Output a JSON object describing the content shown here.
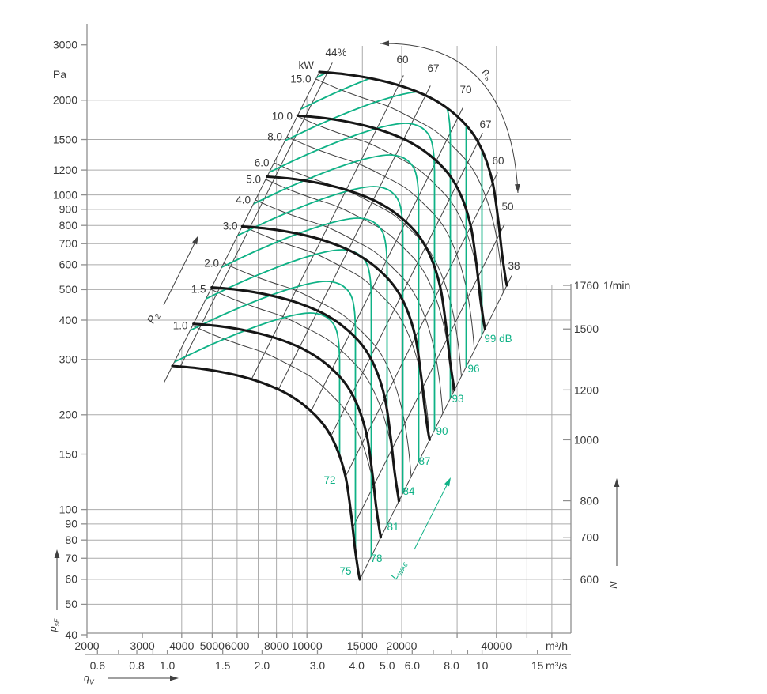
{
  "chart_data": {
    "type": "line",
    "title": "",
    "x_axis": {
      "label": "qV",
      "unit_primary": "m³/h",
      "unit_secondary": "m³/s",
      "range_m3h": [
        2000,
        69000
      ],
      "ticks_m3h": [
        2000,
        3000,
        4000,
        5000,
        6000,
        7000,
        8000,
        9000,
        10000,
        15000,
        20000,
        30000,
        40000,
        50000,
        60000
      ],
      "labeled_m3h": [
        2000,
        3000,
        4000,
        5000,
        6000,
        8000,
        10000,
        15000,
        20000,
        40000
      ],
      "ticks_m3s": [
        0.6,
        0.7,
        0.8,
        0.9,
        1.0,
        1.5,
        2.0,
        3.0,
        4.0,
        5.0,
        6.0,
        7.0,
        8.0,
        9.0,
        10,
        15
      ],
      "labeled_m3s": [
        "0.6",
        "0.8",
        "1.0",
        "1.5",
        "2.0",
        "3.0",
        "4.0",
        "5.0",
        "6.0",
        "8.0",
        "10",
        "15"
      ],
      "scale": "log"
    },
    "y_axis": {
      "label": "psF",
      "unit": "Pa",
      "range": [
        40,
        3400
      ],
      "ticks": [
        3000,
        2000,
        1500,
        1200,
        1000,
        900,
        800,
        700,
        600,
        500,
        400,
        300,
        200,
        150,
        100,
        90,
        80,
        70,
        60,
        50,
        40
      ],
      "gridline_values": [
        2000,
        1500,
        1200,
        1000,
        900,
        800,
        700,
        600,
        500,
        400,
        300,
        200,
        150,
        100,
        90,
        80,
        70,
        60,
        50
      ],
      "scale": "log"
    },
    "y2_axis": {
      "label": "N",
      "unit": "1/min",
      "ticks": [
        1760,
        1500,
        1200,
        1000,
        800,
        700,
        600
      ],
      "scale": "log (fan-law, pressure ∝ n²)"
    },
    "fan_speed_curves": [
      {
        "rpm": 600,
        "q_start_m3h": 3740,
        "p_start_Pa": 289,
        "q_end_m3h": 14720,
        "p_end_Pa": 61
      },
      {
        "rpm": 700,
        "q_start_m3h": 4360,
        "p_start_Pa": 393,
        "q_end_m3h": 17170,
        "p_end_Pa": 83
      },
      {
        "rpm": 800,
        "q_start_m3h": 4980,
        "p_start_Pa": 514,
        "q_end_m3h": 19630,
        "p_end_Pa": 108
      },
      {
        "rpm": 1000,
        "q_start_m3h": 6230,
        "p_start_Pa": 803,
        "q_end_m3h": 24540,
        "p_end_Pa": 169
      },
      {
        "rpm": 1200,
        "q_start_m3h": 7470,
        "p_start_Pa": 1156,
        "q_end_m3h": 29450,
        "p_end_Pa": 244
      },
      {
        "rpm": 1500,
        "q_start_m3h": 9340,
        "p_start_Pa": 1806,
        "q_end_m3h": 36800,
        "p_end_Pa": 381
      },
      {
        "rpm": 1760,
        "q_start_m3h": 10960,
        "p_start_Pa": 2487,
        "q_end_m3h": 43190,
        "p_end_Pa": 524
      }
    ],
    "power_curves": {
      "unit": "kW",
      "axis_label": "P2",
      "values": [
        1.0,
        1.5,
        2.0,
        3.0,
        4.0,
        5.0,
        6.0,
        8.0,
        10.0,
        15.0
      ]
    },
    "efficiency_lines": {
      "axis_label": "ns",
      "labels": [
        "44%",
        "60",
        "67",
        "70",
        "67",
        "60",
        "50",
        "38"
      ]
    },
    "sound_power_curves": {
      "unit": "dB",
      "axis_label": "LWA6",
      "values": [
        72,
        75,
        78,
        81,
        84,
        87,
        90,
        93,
        96,
        99
      ],
      "top_label": "99 dB"
    },
    "legend_position": "none",
    "grid": true
  },
  "labels": {
    "pa_unit": "Pa",
    "m3h_unit": "m³/h",
    "m3s_unit": "m³/s",
    "rpm_unit": "1/min",
    "kw_header": "kW",
    "kw_values": [
      "1.0",
      "1.5",
      "2.0",
      "3.0",
      "4.0",
      "5.0",
      "6.0",
      "8.0",
      "10.0",
      "15.0"
    ],
    "efficiency": [
      "44%",
      "60",
      "67",
      "70",
      "67",
      "60",
      "50",
      "38"
    ],
    "noise": [
      "72",
      "75",
      "78",
      "81",
      "84",
      "87",
      "90",
      "93",
      "96",
      "99 dB"
    ],
    "rpm_values": [
      "1760",
      "1500",
      "1200",
      "1000",
      "800",
      "700",
      "600"
    ],
    "pa_values": [
      "3000",
      "2000",
      "1500",
      "1200",
      "1000",
      "900",
      "800",
      "700",
      "600",
      "500",
      "400",
      "300",
      "200",
      "150",
      "100",
      "90",
      "80",
      "70",
      "60",
      "50",
      "40"
    ],
    "m3h_values": [
      "2000",
      "3000",
      "4000",
      "5000",
      "6000",
      "8000",
      "10000",
      "15000",
      "20000",
      "40000"
    ],
    "m3s_values": [
      "0.6",
      "0.8",
      "1.0",
      "1.5",
      "2.0",
      "3.0",
      "4.0",
      "5.0",
      "6.0",
      "8.0",
      "10",
      "15"
    ],
    "arrow_p2_main": "P",
    "arrow_p2_sub": "2",
    "arrow_ns_main": "n",
    "arrow_ns_sub": "s",
    "arrow_lwa_main": "L",
    "arrow_lwa_sub": "WA6",
    "arrow_psf_main": "p",
    "arrow_psf_sub": "sF",
    "arrow_qv_main": "q",
    "arrow_qv_sub": "V",
    "arrow_n_main": "N"
  },
  "colors": {
    "background": "#ffffff",
    "fan_curve": "#161616",
    "mesh_line": "#414141",
    "noise_teal": "#0fb286",
    "grid": "#ababab",
    "axis": "#8f8f8f",
    "text": "#383838"
  }
}
